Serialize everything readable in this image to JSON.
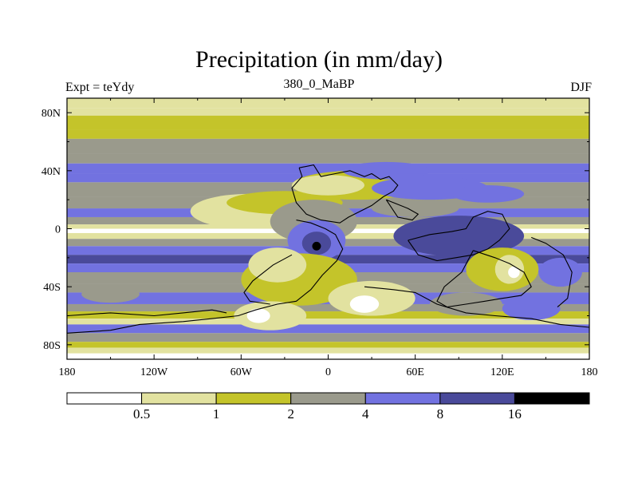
{
  "chart_data": {
    "type": "contour-map",
    "title": "Precipitation (in mm/day)",
    "left_label": "Expt = teYdy",
    "center_label": "380_0_MaBP",
    "right_label": "DJF",
    "x_ticks": [
      "180",
      "120W",
      "60W",
      "0",
      "60E",
      "120E",
      "180"
    ],
    "y_ticks": [
      "80N",
      "40N",
      "0",
      "40S",
      "80S"
    ],
    "lon_range": [
      -180,
      180
    ],
    "lat_range": [
      -90,
      90
    ],
    "colorbar": {
      "levels": [
        "0.5",
        "1",
        "2",
        "4",
        "8",
        "16"
      ],
      "colors": [
        "#ffffff",
        "#e2e2a0",
        "#c4c42a",
        "#9a9a8c",
        "#7272e0",
        "#4a4a9a",
        "#000000"
      ]
    },
    "lat_bands": [
      {
        "lat": 90,
        "bin": 1
      },
      {
        "lat": 83,
        "bin": 1
      },
      {
        "lat": 78,
        "bin": 2
      },
      {
        "lat": 68,
        "bin": 2
      },
      {
        "lat": 62,
        "bin": 3
      },
      {
        "lat": 52,
        "bin": 3
      },
      {
        "lat": 45,
        "bin": 4
      },
      {
        "lat": 38,
        "bin": 4
      },
      {
        "lat": 32,
        "bin": 3
      },
      {
        "lat": 22,
        "bin": 3
      },
      {
        "lat": 14,
        "bin": 4
      },
      {
        "lat": 8,
        "bin": 3
      },
      {
        "lat": 3,
        "bin": 1
      },
      {
        "lat": 0,
        "bin": 0
      },
      {
        "lat": -3,
        "bin": 1
      },
      {
        "lat": -7,
        "bin": 3
      },
      {
        "lat": -12,
        "bin": 4
      },
      {
        "lat": -18,
        "bin": 5
      },
      {
        "lat": -24,
        "bin": 4
      },
      {
        "lat": -30,
        "bin": 3
      },
      {
        "lat": -38,
        "bin": 3
      },
      {
        "lat": -44,
        "bin": 4
      },
      {
        "lat": -52,
        "bin": 3
      },
      {
        "lat": -57,
        "bin": 2
      },
      {
        "lat": -62,
        "bin": 1
      },
      {
        "lat": -66,
        "bin": 4
      },
      {
        "lat": -72,
        "bin": 3
      },
      {
        "lat": -78,
        "bin": 2
      },
      {
        "lat": -82,
        "bin": 1
      },
      {
        "lat": -86,
        "bin": 0
      },
      {
        "lat": -90,
        "bin": 1
      }
    ],
    "blobs": [
      {
        "lon": -55,
        "lat": 12,
        "rx": 40,
        "ry": 12,
        "bin": 1
      },
      {
        "lon": -30,
        "lat": 18,
        "rx": 40,
        "ry": 8,
        "bin": 2
      },
      {
        "lon": -10,
        "lat": 5,
        "rx": 30,
        "ry": 15,
        "bin": 3
      },
      {
        "lon": -8,
        "lat": -8,
        "rx": 20,
        "ry": 14,
        "bin": 4
      },
      {
        "lon": -8,
        "lat": -10,
        "rx": 10,
        "ry": 8,
        "bin": 5
      },
      {
        "lon": -8,
        "lat": -12,
        "rx": 3,
        "ry": 3,
        "bin": 6
      },
      {
        "lon": 20,
        "lat": 30,
        "rx": 45,
        "ry": 10,
        "bin": 2
      },
      {
        "lon": 0,
        "lat": 30,
        "rx": 25,
        "ry": 7,
        "bin": 1
      },
      {
        "lon": 70,
        "lat": 28,
        "rx": 40,
        "ry": 8,
        "bin": 4
      },
      {
        "lon": 110,
        "lat": 24,
        "rx": 25,
        "ry": 6,
        "bin": 4
      },
      {
        "lon": -20,
        "lat": -35,
        "rx": 40,
        "ry": 18,
        "bin": 2
      },
      {
        "lon": -35,
        "lat": -25,
        "rx": 20,
        "ry": 12,
        "bin": 1
      },
      {
        "lon": -40,
        "lat": -60,
        "rx": 25,
        "ry": 10,
        "bin": 1
      },
      {
        "lon": -48,
        "lat": -60,
        "rx": 8,
        "ry": 5,
        "bin": 0
      },
      {
        "lon": 30,
        "lat": -48,
        "rx": 30,
        "ry": 12,
        "bin": 1
      },
      {
        "lon": 25,
        "lat": -52,
        "rx": 10,
        "ry": 6,
        "bin": 0
      },
      {
        "lon": 90,
        "lat": -5,
        "rx": 45,
        "ry": 14,
        "bin": 5
      },
      {
        "lon": 120,
        "lat": -28,
        "rx": 25,
        "ry": 15,
        "bin": 2
      },
      {
        "lon": 125,
        "lat": -28,
        "rx": 10,
        "ry": 10,
        "bin": 1
      },
      {
        "lon": 128,
        "lat": -30,
        "rx": 4,
        "ry": 4,
        "bin": 0
      },
      {
        "lon": 140,
        "lat": -55,
        "rx": 20,
        "ry": 8,
        "bin": 4
      },
      {
        "lon": 95,
        "lat": -52,
        "rx": 25,
        "ry": 8,
        "bin": 3
      },
      {
        "lon": -150,
        "lat": -45,
        "rx": 20,
        "ry": 6,
        "bin": 3
      },
      {
        "lon": 160,
        "lat": -30,
        "rx": 15,
        "ry": 10,
        "bin": 4
      },
      {
        "lon": 60,
        "lat": 14,
        "rx": 30,
        "ry": 6,
        "bin": 3
      },
      {
        "lon": 40,
        "lat": 40,
        "rx": 30,
        "ry": 6,
        "bin": 4
      }
    ]
  }
}
